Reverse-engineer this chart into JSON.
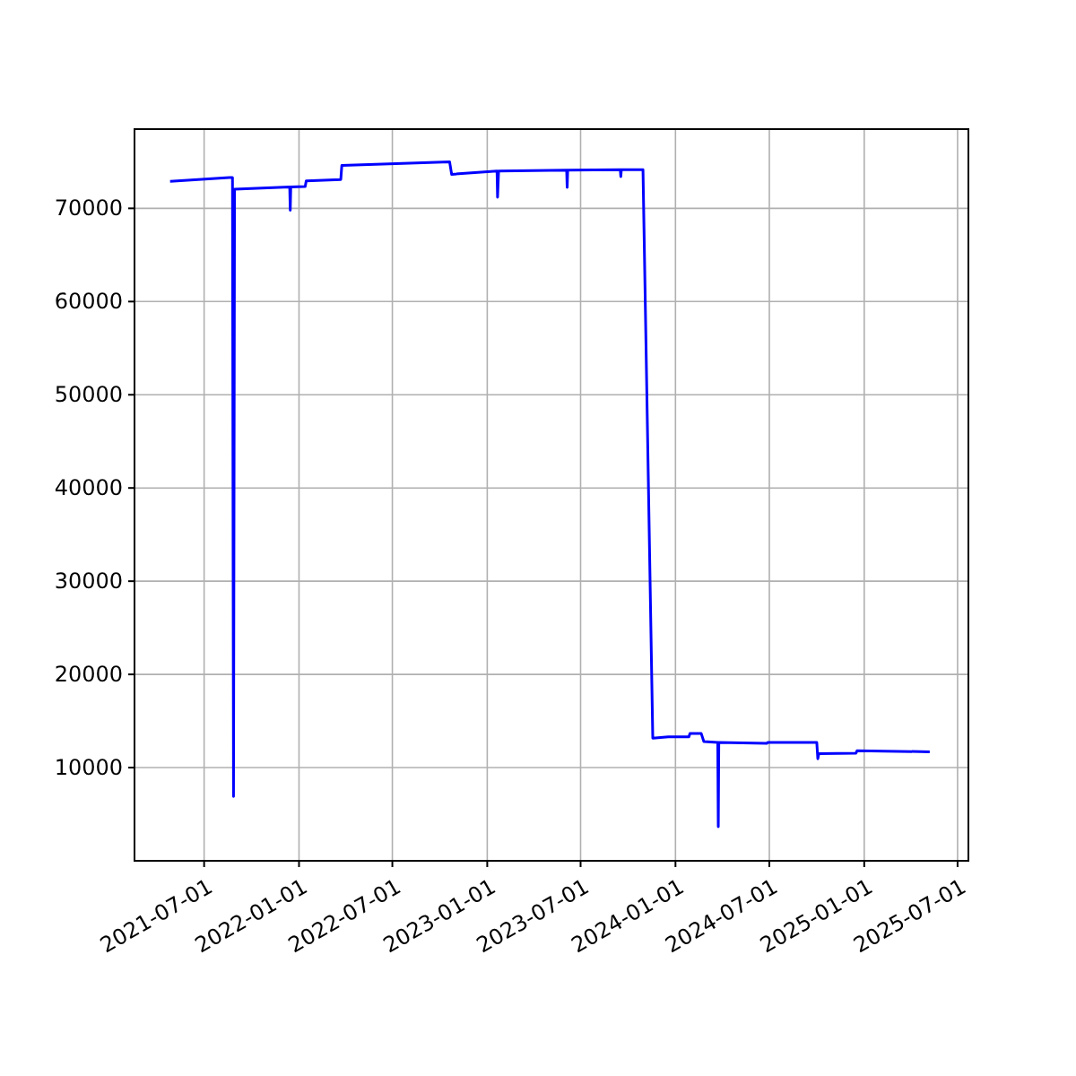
{
  "chart_data": {
    "type": "line",
    "x": [
      "2021-04-26",
      "2021-08-19",
      "2021-08-25",
      "2021-08-27",
      "2021-08-29",
      "2021-12-14",
      "2021-12-15",
      "2021-12-16",
      "2022-01-13",
      "2022-01-15",
      "2022-03-23",
      "2022-03-25",
      "2022-10-20",
      "2022-10-24",
      "2023-01-20",
      "2023-01-21",
      "2023-01-23",
      "2023-06-04",
      "2023-06-05",
      "2023-06-06",
      "2023-09-16",
      "2023-09-17",
      "2023-09-18",
      "2023-10-30",
      "2023-11-18",
      "2023-12-18",
      "2024-01-27",
      "2024-01-29",
      "2024-02-20",
      "2024-02-25",
      "2024-03-23",
      "2024-03-24",
      "2024-03-25",
      "2024-06-26",
      "2024-06-28",
      "2024-10-01",
      "2024-10-03",
      "2024-10-05",
      "2024-12-16",
      "2024-12-18",
      "2025-05-08"
    ],
    "series": [
      {
        "color": "#0000ff",
        "values": [
          72900,
          73300,
          73300,
          6900,
          72050,
          72300,
          69800,
          72300,
          72350,
          72950,
          73100,
          74600,
          75000,
          73650,
          74000,
          71200,
          74000,
          74100,
          72250,
          74100,
          74150,
          73400,
          74150,
          74150,
          13150,
          13300,
          13300,
          13650,
          13650,
          12800,
          12700,
          3650,
          12700,
          12600,
          12700,
          12700,
          10950,
          11500,
          11550,
          11800,
          11700
        ]
      }
    ],
    "xlim": [
      "2021-02-16",
      "2025-07-22"
    ],
    "xticks": [
      "2021-07-01",
      "2022-01-01",
      "2022-07-01",
      "2023-01-01",
      "2023-07-01",
      "2024-01-01",
      "2024-07-01",
      "2025-01-01",
      "2025-07-01"
    ],
    "ylim": [
      0,
      78500
    ],
    "yticks": [
      10000,
      20000,
      30000,
      40000,
      50000,
      60000,
      70000
    ],
    "grid": true
  }
}
